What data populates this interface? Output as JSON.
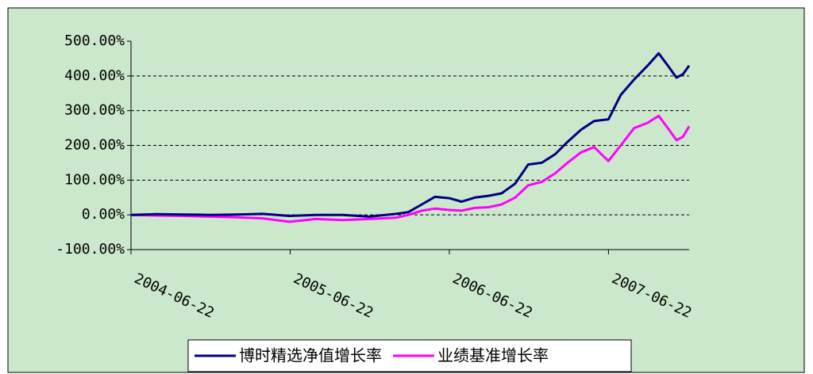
{
  "chart_data": {
    "type": "line",
    "x": [
      "2004-06-22",
      "2004-08-20",
      "2004-10-20",
      "2004-12-20",
      "2005-02-20",
      "2005-04-20",
      "2005-06-20",
      "2005-08-20",
      "2005-10-20",
      "2005-12-20",
      "2006-02-20",
      "2006-03-20",
      "2006-04-20",
      "2006-05-20",
      "2006-06-22",
      "2006-07-20",
      "2006-08-20",
      "2006-09-20",
      "2006-10-20",
      "2006-11-20",
      "2006-12-20",
      "2007-01-20",
      "2007-02-20",
      "2007-03-20",
      "2007-04-20",
      "2007-05-20",
      "2007-06-22",
      "2007-07-20",
      "2007-08-20",
      "2007-09-20",
      "2007-10-15",
      "2007-11-05",
      "2007-11-25",
      "2007-12-10",
      "2007-12-24"
    ],
    "series": [
      {
        "name": "博时精选净值增长率",
        "color": "#000080",
        "values": [
          0,
          2,
          1,
          0,
          1,
          3,
          -3,
          0,
          0,
          -5,
          3,
          8,
          30,
          52,
          48,
          38,
          50,
          55,
          62,
          90,
          145,
          150,
          175,
          210,
          245,
          270,
          275,
          345,
          390,
          430,
          465,
          430,
          395,
          405,
          430
        ]
      },
      {
        "name": "业绩基准增长率",
        "color": "#ff00ff",
        "values": [
          0,
          -2,
          -3,
          -5,
          -7,
          -10,
          -20,
          -12,
          -15,
          -12,
          -8,
          0,
          12,
          18,
          14,
          12,
          20,
          22,
          30,
          50,
          85,
          95,
          120,
          150,
          180,
          195,
          155,
          200,
          250,
          265,
          285,
          250,
          215,
          225,
          255
        ]
      }
    ],
    "xlim": [
      "2004-06-22",
      "2007-12-24"
    ],
    "xticks": [
      "2004-06-22",
      "2005-06-22",
      "2006-06-22",
      "2007-06-22"
    ],
    "ylim": [
      -100,
      500
    ],
    "yticks": [
      {
        "value": -100,
        "label": "-100.00%"
      },
      {
        "value": 0,
        "label": "0.00%"
      },
      {
        "value": 100,
        "label": "100.00%"
      },
      {
        "value": 200,
        "label": "200.00%"
      },
      {
        "value": 300,
        "label": "300.00%"
      },
      {
        "value": 400,
        "label": "400.00%"
      },
      {
        "value": 500,
        "label": "500.00%"
      }
    ],
    "grid": true,
    "legend": "bottom"
  }
}
